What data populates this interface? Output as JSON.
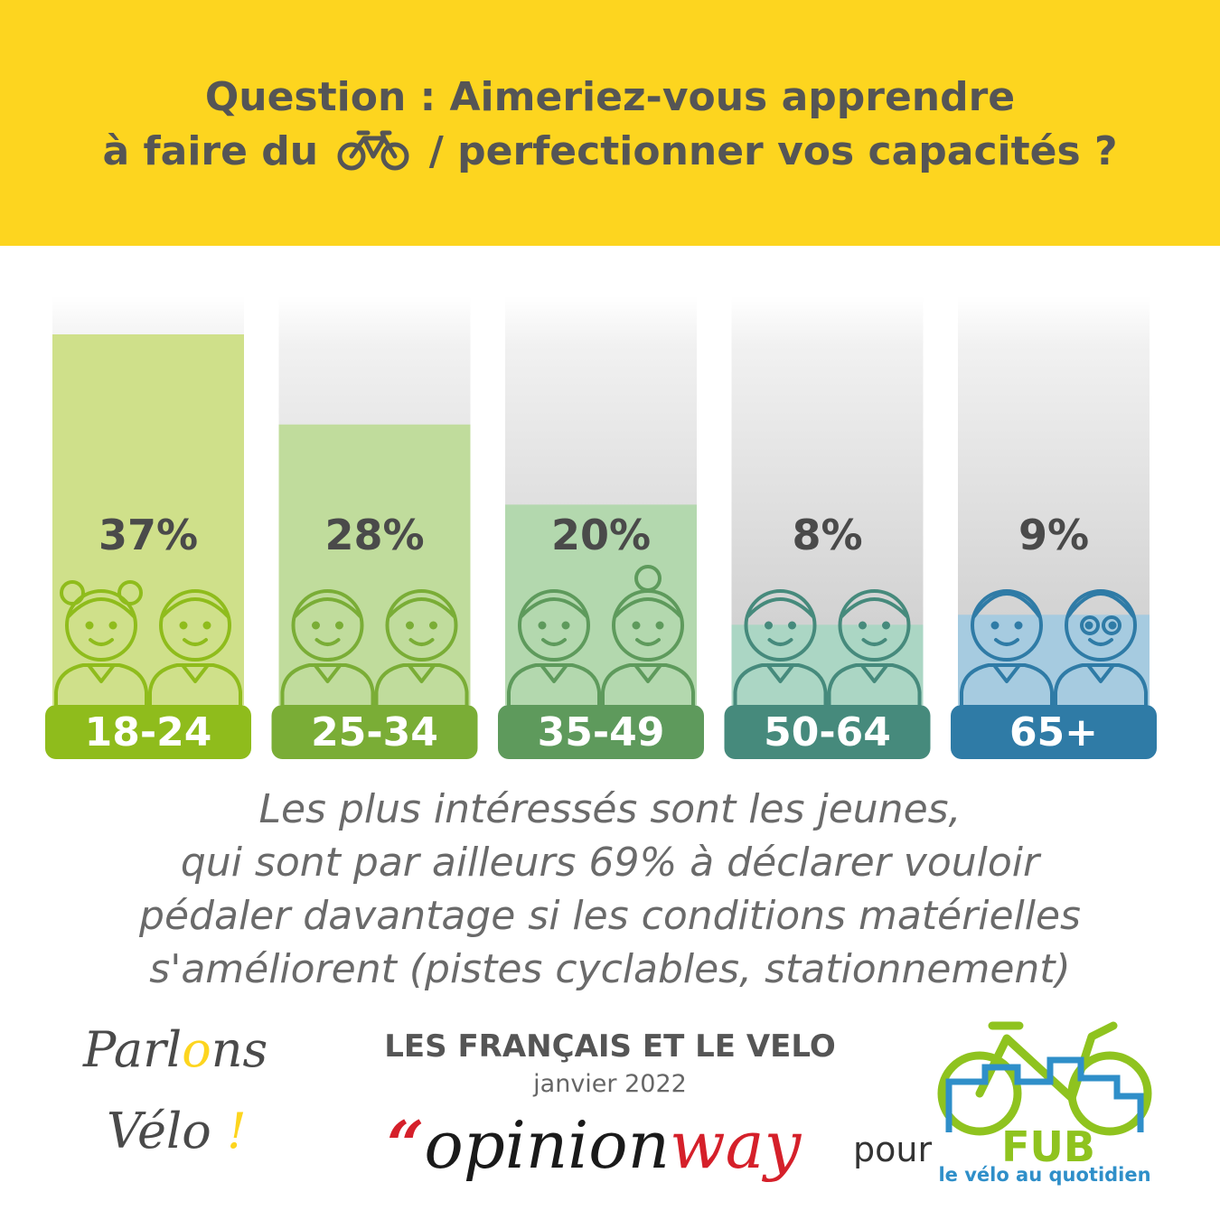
{
  "header": {
    "line1": "Question : Aimeriez-vous apprendre",
    "line2_before": "à faire du",
    "line2_after": "/ perfectionner vos capacités ?",
    "bike_icon": "bicycle-icon"
  },
  "chart_data": {
    "type": "bar",
    "categories": [
      "18-24",
      "25-34",
      "35-49",
      "50-64",
      "65+"
    ],
    "values": [
      37,
      28,
      20,
      8,
      9
    ],
    "value_labels": [
      "37%",
      "28%",
      "20%",
      "8%",
      "9%"
    ],
    "ylim": [
      0,
      40
    ],
    "grid": false,
    "bar_colors": [
      "#cfe08a",
      "#c0dc9c",
      "#b3d8ae",
      "#abd6c4",
      "#a6cbe0"
    ],
    "label_colors": [
      "#8fbc1c",
      "#7aad36",
      "#5e9a5c",
      "#468a7c",
      "#2f7ba6"
    ],
    "icons": [
      "children-icon",
      "young-adults-icon",
      "adults-icon",
      "middle-aged-icon",
      "seniors-icon"
    ]
  },
  "caption": [
    "Les plus intéressés sont les jeunes,",
    "qui sont par ailleurs 69% à déclarer vouloir",
    "pédaler davantage si les conditions matérielles",
    "s'améliorent (pistes cyclables, stationnement)"
  ],
  "footer": {
    "logo_left_word1_a": "Parl",
    "logo_left_word1_o": "o",
    "logo_left_word1_b": "ns",
    "logo_left_word2": "Vélo",
    "logo_left_bang": "!",
    "survey_title": "LES FRANÇAIS ET LE VELO",
    "survey_date": "janvier 2022",
    "opinionway_quote": "“",
    "opinionway_a": "opinion",
    "opinionway_b": "way",
    "pour": "pour",
    "fub_name": "FUB",
    "fub_tagline": "le vélo au quotidien"
  },
  "colors": {
    "yellow": "#fdd51f",
    "text_dark": "#555555"
  }
}
